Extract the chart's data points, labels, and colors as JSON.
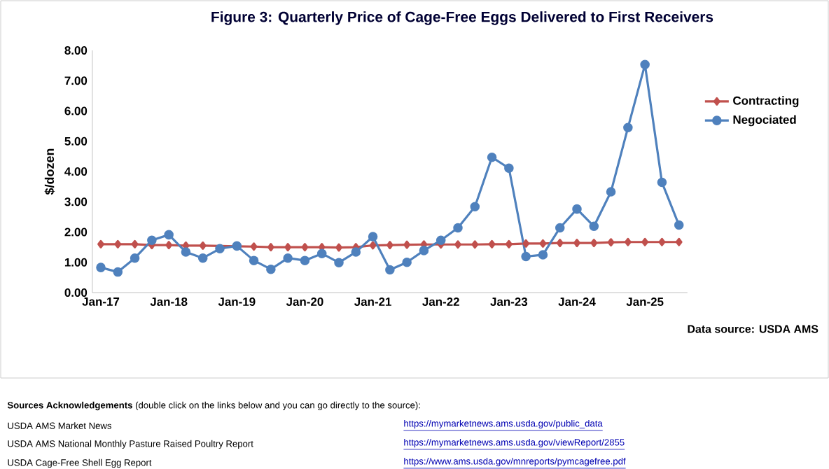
{
  "chart_data": {
    "type": "line",
    "title": "Figure 3: Quarterly Price of Cage-Free Eggs Delivered to First Receivers",
    "ylabel": "$/dozen",
    "categories": [
      "Jan-17",
      null,
      null,
      null,
      "Jan-18",
      null,
      null,
      null,
      "Jan-19",
      null,
      null,
      null,
      "Jan-20",
      null,
      null,
      null,
      "Jan-21",
      null,
      null,
      null,
      "Jan-22",
      null,
      null,
      null,
      "Jan-23",
      null,
      null,
      null,
      "Jan-24",
      null,
      null,
      null,
      "Jan-25",
      null,
      null
    ],
    "series": [
      {
        "name": "Contracting",
        "color": "#c0504d",
        "marker": "diamond",
        "values": [
          1.6,
          1.6,
          1.6,
          1.57,
          1.57,
          1.55,
          1.55,
          null,
          1.53,
          1.52,
          1.5,
          1.5,
          1.5,
          1.5,
          1.49,
          1.5,
          1.56,
          1.57,
          1.58,
          1.59,
          1.59,
          1.59,
          1.59,
          1.6,
          1.6,
          1.62,
          1.62,
          1.64,
          1.64,
          1.64,
          1.66,
          1.67,
          1.67,
          1.67,
          1.67
        ]
      },
      {
        "name": "Negociated",
        "color": "#4f81bd",
        "marker": "circle",
        "values": [
          0.83,
          0.68,
          1.14,
          1.73,
          1.91,
          1.34,
          1.14,
          1.45,
          1.54,
          1.06,
          0.77,
          1.14,
          1.06,
          1.29,
          0.99,
          1.34,
          1.85,
          0.75,
          1.0,
          1.39,
          1.73,
          2.14,
          2.84,
          4.47,
          4.11,
          1.19,
          1.25,
          2.14,
          2.76,
          2.19,
          3.33,
          5.45,
          7.53,
          3.64,
          2.23
        ]
      }
    ],
    "ylim": [
      0,
      8
    ],
    "yticks": [
      {
        "value": 0,
        "label": "0.00"
      },
      {
        "value": 1,
        "label": "1.00"
      },
      {
        "value": 2,
        "label": "2.00"
      },
      {
        "value": 3,
        "label": "3.00"
      },
      {
        "value": 4,
        "label": "4.00"
      },
      {
        "value": 5,
        "label": "5.00"
      },
      {
        "value": 6,
        "label": "6.00"
      },
      {
        "value": 7,
        "label": "7.00"
      },
      {
        "value": 8,
        "label": "8.00"
      }
    ],
    "legend": "right",
    "line_style": "solid",
    "annotations": [
      "Data source: USDA AMS",
      "**Sources Acknowledgements** (double click on the links below and you can go directly to the source):",
      "USDA AMS Market News",
      "https://mymarketnews.ams.usda.gov/public_data",
      "USDA AMS National Monthly Pasture Raised Poultry Report",
      "https://mymarketnews.ams.usda.gov/viewReport/2855",
      "USDA Cage-Free Shell Egg Report",
      "https://www.ams.usda.gov/mnreports/pymcagefree.pdf"
    ]
  }
}
